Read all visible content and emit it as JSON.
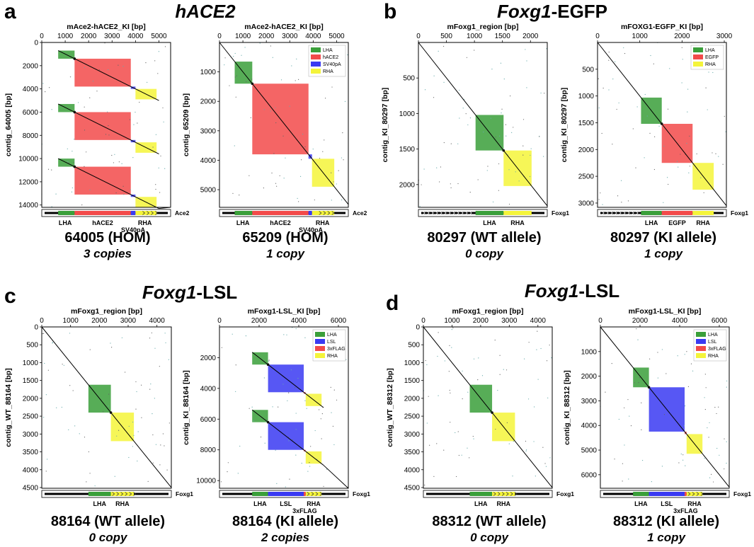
{
  "figure": {
    "panels": [
      {
        "letter": "a",
        "title_italic": "hACE2",
        "title_rest": ""
      },
      {
        "letter": "b",
        "title_italic": "Foxg1",
        "title_rest": "-EGFP"
      },
      {
        "letter": "c",
        "title_italic": "Foxg1",
        "title_rest": "-LSL"
      },
      {
        "letter": "d",
        "title_italic": "Foxg1",
        "title_rest": "-LSL"
      }
    ]
  },
  "colors": {
    "LHA": "#3a9f3a",
    "hACE2": "#f24a4a",
    "SV40pA": "#3a3af2",
    "RHA": "#f4f43a",
    "EGFP": "#f24a4a",
    "LSL": "#3a3af2",
    "3xFLAG": "#f24a4a"
  },
  "chart_data": [
    {
      "type": "dotplot",
      "title": "mAce2-hACE2_KI [bp]",
      "ylabel": "contig_64005 [bp]",
      "xlim": [
        0,
        5500
      ],
      "ylim": [
        0,
        14200
      ],
      "xticks": [
        0,
        1000,
        2000,
        3000,
        4000,
        5000
      ],
      "yticks": [
        0,
        2000,
        4000,
        6000,
        8000,
        10000,
        12000,
        14000
      ],
      "legend": null,
      "copies": [
        0,
        4600,
        9300
      ],
      "features": [
        {
          "name": "LHA",
          "start": 700,
          "end": 1400
        },
        {
          "name": "hACE2",
          "start": 1400,
          "end": 3800
        },
        {
          "name": "SV40pA",
          "start": 3800,
          "end": 4000
        },
        {
          "name": "RHA",
          "start": 4000,
          "end": 4900
        }
      ],
      "track_label": "Ace2",
      "track_labels": [
        {
          "text": "LHA",
          "pos": 1000,
          "row": 1
        },
        {
          "text": "hACE2",
          "pos": 2600,
          "row": 1
        },
        {
          "text": "RHA",
          "pos": 4400,
          "row": 1
        },
        {
          "text": "SV40pA",
          "pos": 3900,
          "row": 2
        }
      ],
      "sample": "64005 (HOM)",
      "copies_label": "3 copies"
    },
    {
      "type": "dotplot",
      "title": "mAce2-hACE2_KI [bp]",
      "ylabel": "contig_65209 [bp]",
      "xlim": [
        0,
        5500
      ],
      "ylim": [
        0,
        5600
      ],
      "xticks": [
        0,
        1000,
        2000,
        3000,
        4000,
        5000
      ],
      "yticks": [
        1000,
        2000,
        3000,
        4000,
        5000
      ],
      "legend": [
        "LHA",
        "hACE2",
        "SV40pA",
        "RHA"
      ],
      "copies": [
        0
      ],
      "features": [
        {
          "name": "LHA",
          "start": 650,
          "end": 1400
        },
        {
          "name": "hACE2",
          "start": 1400,
          "end": 3800
        },
        {
          "name": "SV40pA",
          "start": 3800,
          "end": 3950
        },
        {
          "name": "RHA",
          "start": 3950,
          "end": 4900
        }
      ],
      "track_label": "Ace2",
      "track_labels": [
        {
          "text": "LHA",
          "pos": 1000,
          "row": 1
        },
        {
          "text": "hACE2",
          "pos": 2600,
          "row": 1
        },
        {
          "text": "RHA",
          "pos": 4400,
          "row": 1
        },
        {
          "text": "SV40pA",
          "pos": 3900,
          "row": 2
        }
      ],
      "sample": "65209 (HOM)",
      "copies_label": "1 copy"
    },
    {
      "type": "dotplot",
      "title": "mFoxg1_region [bp]",
      "ylabel": "contig_KI_80297 [bp]",
      "xlim": [
        0,
        2300
      ],
      "ylim": [
        0,
        2320
      ],
      "xticks": [
        0,
        500,
        1000,
        1500,
        2000
      ],
      "yticks": [
        500,
        1000,
        1500,
        2000
      ],
      "legend": null,
      "copies": [
        0
      ],
      "features": [
        {
          "name": "LHA",
          "start": 1020,
          "end": 1520
        },
        {
          "name": "RHA",
          "start": 1520,
          "end": 2020
        }
      ],
      "track_label": "Foxg1",
      "track_labels": [
        {
          "text": "LHA",
          "pos": 1270,
          "row": 1
        },
        {
          "text": "RHA",
          "pos": 1770,
          "row": 1
        }
      ],
      "sample": "80297 (WT allele)",
      "copies_label": "0 copy"
    },
    {
      "type": "dotplot",
      "title": "mFOXG1-EGFP_KI [bp]",
      "ylabel": "contig_KI_80297 [bp]",
      "xlim": [
        0,
        3050
      ],
      "ylim": [
        0,
        3080
      ],
      "xticks": [
        0,
        1000,
        2000,
        3000
      ],
      "yticks": [
        500,
        1000,
        1500,
        2000,
        2500,
        3000
      ],
      "legend": [
        "LHA",
        "EGFP",
        "RHA"
      ],
      "copies": [
        0
      ],
      "features": [
        {
          "name": "LHA",
          "start": 1030,
          "end": 1520
        },
        {
          "name": "EGFP",
          "start": 1520,
          "end": 2250
        },
        {
          "name": "RHA",
          "start": 2250,
          "end": 2750
        }
      ],
      "track_label": "Foxg1",
      "track_labels": [
        {
          "text": "LHA",
          "pos": 1275,
          "row": 1
        },
        {
          "text": "EGFP",
          "pos": 1885,
          "row": 1
        },
        {
          "text": "RHA",
          "pos": 2500,
          "row": 1
        }
      ],
      "sample": "80297 (KI allele)",
      "copies_label": "1 copy"
    },
    {
      "type": "dotplot",
      "title": "mFoxg1_region [bp]",
      "ylabel": "contig_WT_88164 [bp]",
      "xlim": [
        0,
        4500
      ],
      "ylim": [
        0,
        4520
      ],
      "xticks": [
        0,
        1000,
        2000,
        3000,
        4000
      ],
      "yticks": [
        0,
        500,
        1000,
        1500,
        2000,
        2500,
        3000,
        3500,
        4000,
        4500
      ],
      "legend": null,
      "copies": [
        0
      ],
      "features": [
        {
          "name": "LHA",
          "start": 1620,
          "end": 2400
        },
        {
          "name": "RHA",
          "start": 2400,
          "end": 3200
        }
      ],
      "track_label": "Foxg1",
      "track_labels": [
        {
          "text": "LHA",
          "pos": 2010,
          "row": 1
        },
        {
          "text": "RHA",
          "pos": 2800,
          "row": 1
        }
      ],
      "sample": "88164 (WT allele)",
      "copies_label": "0 copy"
    },
    {
      "type": "dotplot",
      "title": "mFoxg1-LSL_KI [bp]",
      "ylabel": "contig_KI_88164 [bp]",
      "xlim": [
        0,
        6500
      ],
      "ylim": [
        0,
        10500
      ],
      "xticks": [
        0,
        2000,
        4000,
        6000
      ],
      "yticks": [
        2000,
        4000,
        6000,
        8000,
        10000
      ],
      "legend": [
        "LHA",
        "LSL",
        "3xFLAG",
        "RHA"
      ],
      "copies": [
        0,
        3750
      ],
      "features": [
        {
          "name": "LHA",
          "start": 1650,
          "end": 2450
        },
        {
          "name": "LSL",
          "start": 2450,
          "end": 4250
        },
        {
          "name": "3xFLAG",
          "start": 4250,
          "end": 4350
        },
        {
          "name": "RHA",
          "start": 4350,
          "end": 5150
        }
      ],
      "track_label": "Foxg1",
      "track_labels": [
        {
          "text": "LHA",
          "pos": 2050,
          "row": 1
        },
        {
          "text": "LSL",
          "pos": 3350,
          "row": 1
        },
        {
          "text": "RHA",
          "pos": 4750,
          "row": 1
        },
        {
          "text": "3xFLAG",
          "pos": 4300,
          "row": 2
        }
      ],
      "sample": "88164 (KI allele)",
      "copies_label": "2 copies"
    },
    {
      "type": "dotplot",
      "title": "mFoxg1_region [bp]",
      "ylabel": "contig_WT_88312 [bp]",
      "xlim": [
        0,
        4500
      ],
      "ylim": [
        0,
        4520
      ],
      "xticks": [
        0,
        1000,
        2000,
        3000,
        4000
      ],
      "yticks": [
        0,
        500,
        1000,
        1500,
        2000,
        2500,
        3000,
        3500,
        4000,
        4500
      ],
      "legend": null,
      "copies": [
        0
      ],
      "features": [
        {
          "name": "LHA",
          "start": 1620,
          "end": 2400
        },
        {
          "name": "RHA",
          "start": 2400,
          "end": 3200
        }
      ],
      "track_label": "Foxg1",
      "track_labels": [
        {
          "text": "LHA",
          "pos": 2010,
          "row": 1
        },
        {
          "text": "RHA",
          "pos": 2800,
          "row": 1
        }
      ],
      "sample": "88312 (WT allele)",
      "copies_label": "0 copy"
    },
    {
      "type": "dotplot",
      "title": "mFoxg1-LSL_KI [bp]",
      "ylabel": "contig_KI_88312 [bp]",
      "xlim": [
        0,
        6500
      ],
      "ylim": [
        0,
        6550
      ],
      "xticks": [
        0,
        2000,
        4000,
        6000
      ],
      "yticks": [
        1000,
        2000,
        3000,
        4000,
        5000,
        6000
      ],
      "legend": [
        "LHA",
        "LSL",
        "3xFLAG",
        "RHA"
      ],
      "copies": [
        0
      ],
      "features": [
        {
          "name": "LHA",
          "start": 1650,
          "end": 2450
        },
        {
          "name": "LSL",
          "start": 2450,
          "end": 4250
        },
        {
          "name": "3xFLAG",
          "start": 4250,
          "end": 4350
        },
        {
          "name": "RHA",
          "start": 4350,
          "end": 5150
        }
      ],
      "track_label": "Foxg1",
      "track_labels": [
        {
          "text": "LHA",
          "pos": 2050,
          "row": 1
        },
        {
          "text": "LSL",
          "pos": 3350,
          "row": 1
        },
        {
          "text": "RHA",
          "pos": 4750,
          "row": 1
        },
        {
          "text": "3xFLAG",
          "pos": 4300,
          "row": 2
        }
      ],
      "sample": "88312 (KI allele)",
      "copies_label": "1 copy"
    }
  ]
}
